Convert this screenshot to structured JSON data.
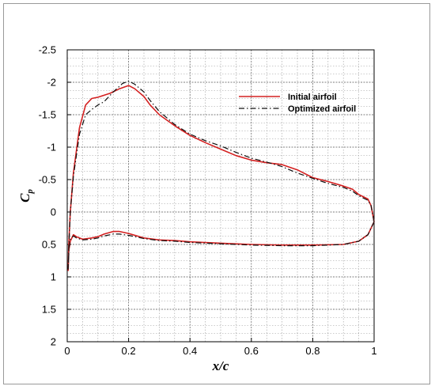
{
  "chart_data": {
    "type": "line",
    "xlabel": "x/c",
    "ylabel": "C",
    "ylabel_sub": "p",
    "xlim": [
      0,
      1
    ],
    "ylim": [
      -2.5,
      2
    ],
    "y_reversed": true,
    "grid": true,
    "legend_position": "top-right",
    "x_ticks": [
      "0",
      "0.2",
      "0.4",
      "0.6",
      "0.8",
      "1"
    ],
    "x_tick_values": [
      0,
      0.2,
      0.4,
      0.6,
      0.8,
      1
    ],
    "y_ticks": [
      "-2.5",
      "-2",
      "-1.5",
      "-1",
      "-0.5",
      "0",
      "0.5",
      "1",
      "1.5",
      "2"
    ],
    "y_tick_values": [
      -2.5,
      -2,
      -1.5,
      -1,
      -0.5,
      0,
      0.5,
      1,
      1.5,
      2
    ],
    "series": [
      {
        "name": "Initial airfoil",
        "color": "#d42020",
        "style": "solid",
        "points": [
          [
            1.0,
            0.15
          ],
          [
            0.99,
            -0.1
          ],
          [
            0.98,
            -0.2
          ],
          [
            0.95,
            -0.27
          ],
          [
            0.93,
            -0.35
          ],
          [
            0.9,
            -0.4
          ],
          [
            0.85,
            -0.47
          ],
          [
            0.8,
            -0.53
          ],
          [
            0.75,
            -0.65
          ],
          [
            0.7,
            -0.73
          ],
          [
            0.65,
            -0.76
          ],
          [
            0.6,
            -0.8
          ],
          [
            0.55,
            -0.87
          ],
          [
            0.5,
            -0.97
          ],
          [
            0.45,
            -1.07
          ],
          [
            0.4,
            -1.18
          ],
          [
            0.35,
            -1.33
          ],
          [
            0.3,
            -1.5
          ],
          [
            0.27,
            -1.65
          ],
          [
            0.25,
            -1.78
          ],
          [
            0.22,
            -1.9
          ],
          [
            0.2,
            -1.95
          ],
          [
            0.17,
            -1.9
          ],
          [
            0.14,
            -1.83
          ],
          [
            0.12,
            -1.8
          ],
          [
            0.1,
            -1.77
          ],
          [
            0.08,
            -1.75
          ],
          [
            0.06,
            -1.65
          ],
          [
            0.04,
            -1.3
          ],
          [
            0.02,
            -0.6
          ],
          [
            0.01,
            0.0
          ],
          [
            0.005,
            0.5
          ],
          [
            0.003,
            0.9
          ],
          [
            0.005,
            0.6
          ],
          [
            0.01,
            0.45
          ],
          [
            0.02,
            0.35
          ],
          [
            0.03,
            0.38
          ],
          [
            0.05,
            0.42
          ],
          [
            0.08,
            0.4
          ],
          [
            0.1,
            0.38
          ],
          [
            0.12,
            0.34
          ],
          [
            0.15,
            0.3
          ],
          [
            0.17,
            0.3
          ],
          [
            0.2,
            0.33
          ],
          [
            0.25,
            0.4
          ],
          [
            0.3,
            0.43
          ],
          [
            0.35,
            0.44
          ],
          [
            0.4,
            0.46
          ],
          [
            0.5,
            0.48
          ],
          [
            0.6,
            0.5
          ],
          [
            0.7,
            0.51
          ],
          [
            0.8,
            0.51
          ],
          [
            0.9,
            0.5
          ],
          [
            0.95,
            0.45
          ],
          [
            0.98,
            0.35
          ],
          [
            1.0,
            0.15
          ]
        ]
      },
      {
        "name": "Optimized airfoil",
        "color": "#111111",
        "style": "dashdot",
        "points": [
          [
            1.0,
            0.15
          ],
          [
            0.99,
            -0.1
          ],
          [
            0.98,
            -0.18
          ],
          [
            0.95,
            -0.25
          ],
          [
            0.93,
            -0.32
          ],
          [
            0.9,
            -0.38
          ],
          [
            0.85,
            -0.44
          ],
          [
            0.8,
            -0.52
          ],
          [
            0.75,
            -0.6
          ],
          [
            0.7,
            -0.7
          ],
          [
            0.65,
            -0.77
          ],
          [
            0.6,
            -0.83
          ],
          [
            0.55,
            -0.92
          ],
          [
            0.5,
            -1.02
          ],
          [
            0.45,
            -1.1
          ],
          [
            0.4,
            -1.2
          ],
          [
            0.35,
            -1.35
          ],
          [
            0.3,
            -1.55
          ],
          [
            0.27,
            -1.72
          ],
          [
            0.25,
            -1.85
          ],
          [
            0.22,
            -1.97
          ],
          [
            0.2,
            -2.02
          ],
          [
            0.18,
            -1.98
          ],
          [
            0.15,
            -1.85
          ],
          [
            0.12,
            -1.7
          ],
          [
            0.1,
            -1.65
          ],
          [
            0.08,
            -1.58
          ],
          [
            0.06,
            -1.5
          ],
          [
            0.04,
            -1.2
          ],
          [
            0.02,
            -0.55
          ],
          [
            0.01,
            0.0
          ],
          [
            0.006,
            0.45
          ],
          [
            0.003,
            0.88
          ],
          [
            0.006,
            0.55
          ],
          [
            0.01,
            0.42
          ],
          [
            0.02,
            0.37
          ],
          [
            0.03,
            0.4
          ],
          [
            0.05,
            0.43
          ],
          [
            0.08,
            0.42
          ],
          [
            0.1,
            0.4
          ],
          [
            0.12,
            0.37
          ],
          [
            0.15,
            0.34
          ],
          [
            0.17,
            0.34
          ],
          [
            0.2,
            0.36
          ],
          [
            0.25,
            0.41
          ],
          [
            0.3,
            0.44
          ],
          [
            0.35,
            0.45
          ],
          [
            0.4,
            0.47
          ],
          [
            0.5,
            0.49
          ],
          [
            0.6,
            0.51
          ],
          [
            0.7,
            0.52
          ],
          [
            0.8,
            0.52
          ],
          [
            0.9,
            0.5
          ],
          [
            0.95,
            0.45
          ],
          [
            0.98,
            0.35
          ],
          [
            1.0,
            0.15
          ]
        ]
      }
    ]
  }
}
